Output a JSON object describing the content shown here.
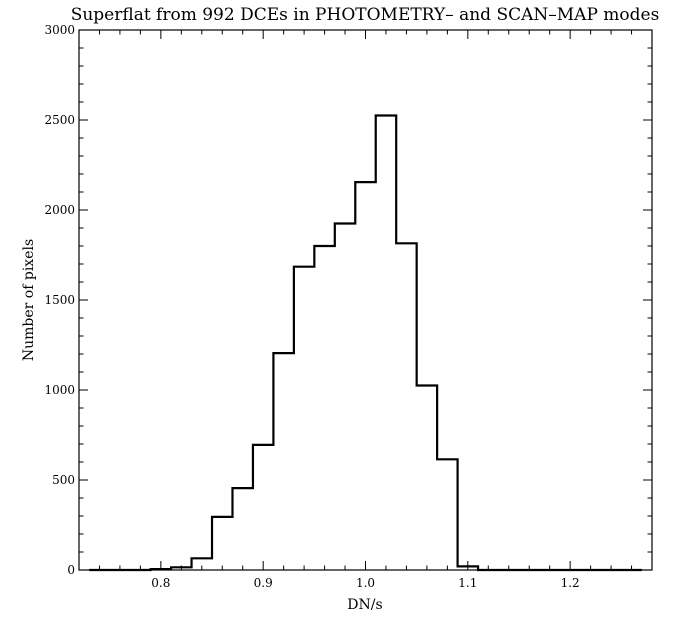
{
  "chart_data": {
    "type": "histogram",
    "title": "Superflat from 992 DCEs in PHOTOMETRY– and SCAN–MAP modes",
    "xlabel": "DN/s",
    "ylabel": "Number of pixels",
    "xlim": [
      0.72,
      1.28
    ],
    "ylim": [
      0,
      3000
    ],
    "x_ticks": [
      0.8,
      0.9,
      1.0,
      1.1,
      1.2
    ],
    "x_tick_labels": [
      "0.8",
      "0.9",
      "1.0",
      "1.1",
      "1.2"
    ],
    "y_ticks": [
      0,
      500,
      1000,
      1500,
      2000,
      2500,
      3000
    ],
    "y_tick_labels": [
      "0",
      "500",
      "1000",
      "1500",
      "2000",
      "2500",
      "3000"
    ],
    "bin_edges": [
      0.73,
      0.75,
      0.77,
      0.79,
      0.81,
      0.83,
      0.85,
      0.87,
      0.89,
      0.91,
      0.93,
      0.95,
      0.97,
      0.99,
      1.01,
      1.03,
      1.05,
      1.07,
      1.09,
      1.11,
      1.13,
      1.15,
      1.17,
      1.19,
      1.21,
      1.23,
      1.25,
      1.27
    ],
    "values": [
      0,
      0,
      0,
      5,
      15,
      65,
      295,
      455,
      695,
      1205,
      1685,
      1800,
      1925,
      2155,
      2525,
      1815,
      1025,
      615,
      20,
      0,
      0,
      0,
      0,
      0,
      0,
      0,
      0
    ],
    "grid": false,
    "line_color": "#000000"
  }
}
